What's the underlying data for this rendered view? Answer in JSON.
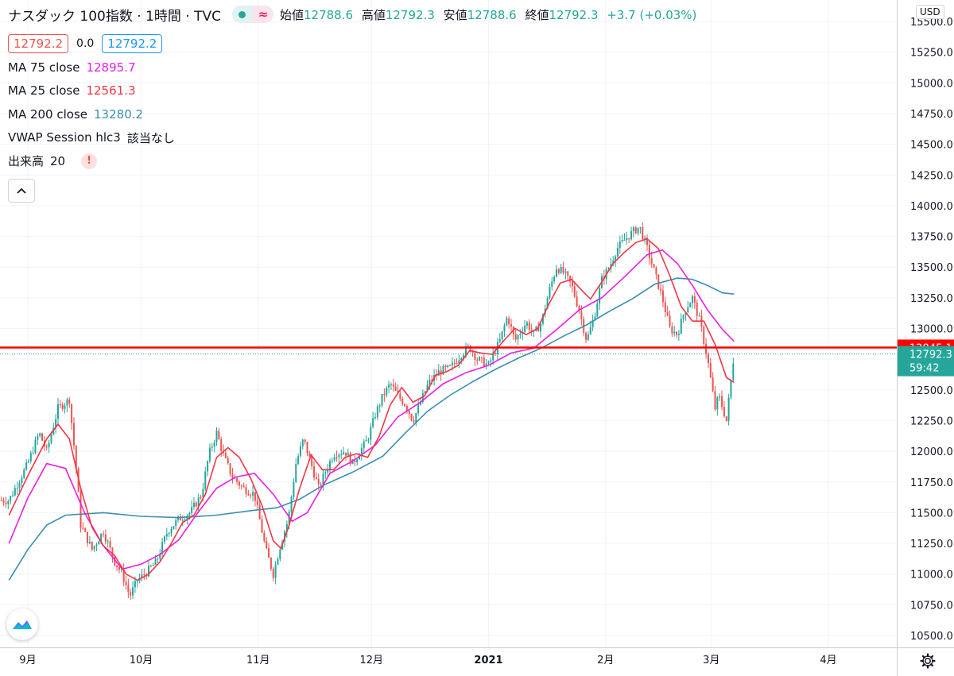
{
  "header": {
    "symbol": "ナスダック 100指数 · 1時間 · TVC",
    "ohlc": [
      {
        "label": "始値",
        "value": "12788.6"
      },
      {
        "label": "高値",
        "value": "12792.3"
      },
      {
        "label": "安値",
        "value": "12788.6"
      },
      {
        "label": "終値",
        "value": "12792.3"
      }
    ],
    "change": "+3.7 (+0.03%)"
  },
  "price_row": {
    "bid": "12792.2",
    "spread": "0.0",
    "ask": "12792.2"
  },
  "indicators": [
    {
      "label": "MA 75 close",
      "value": "12895.7",
      "color": "#e91ee1"
    },
    {
      "label": "MA 25 close",
      "value": "12561.3",
      "color": "#f23645"
    },
    {
      "label": "MA 200 close",
      "value": "13280.2",
      "color": "#3a8fb0"
    },
    {
      "label": "VWAP Session hlc3",
      "value": "該当なし",
      "color": "#131722"
    },
    {
      "label": "出来高",
      "value": "20",
      "color": "#131722"
    }
  ],
  "currency": "USD",
  "colors": {
    "up": "#26a69a",
    "down": "#ef5350",
    "ma75": "#e91ee1",
    "ma25": "#f23645",
    "ma200": "#3a8fb0",
    "hline": "#ff0000",
    "last_price_bg": "#26a69a"
  },
  "icons": {
    "collapse": "chevron-up-icon",
    "logo": "tradingview-logo-icon",
    "settings": "gear-icon"
  },
  "chart_data": {
    "type": "candlestick",
    "x_ticks": [
      "9月",
      "10月",
      "11月",
      "12月",
      "2021",
      "2月",
      "3月",
      "4月"
    ],
    "y_ticks": [
      10500,
      10750,
      11000,
      11250,
      11500,
      11750,
      12000,
      12250,
      12500,
      12750,
      13000,
      13250,
      13500,
      13750,
      14000,
      14250,
      14500,
      14750,
      15000,
      15250,
      15500
    ],
    "y_range": [
      10390,
      15600
    ],
    "horizontal_line": {
      "value": 12845.1,
      "label": "12845.1"
    },
    "last_price": {
      "value": 12792.3,
      "label": "12792.3",
      "countdown": "59:42"
    },
    "close_anchors": [
      {
        "d": -5,
        "v": 11600
      },
      {
        "d": 0,
        "v": 11900
      },
      {
        "d": 3,
        "v": 12150
      },
      {
        "d": 5,
        "v": 12000
      },
      {
        "d": 8,
        "v": 12350
      },
      {
        "d": 11,
        "v": 12420
      },
      {
        "d": 13,
        "v": 11800
      },
      {
        "d": 14,
        "v": 11400
      },
      {
        "d": 17,
        "v": 11200
      },
      {
        "d": 20,
        "v": 11350
      },
      {
        "d": 23,
        "v": 11100
      },
      {
        "d": 25,
        "v": 11000
      },
      {
        "d": 27,
        "v": 10820
      },
      {
        "d": 29,
        "v": 10950
      },
      {
        "d": 31,
        "v": 11000
      },
      {
        "d": 34,
        "v": 11100
      },
      {
        "d": 37,
        "v": 11350
      },
      {
        "d": 40,
        "v": 11450
      },
      {
        "d": 43,
        "v": 11500
      },
      {
        "d": 46,
        "v": 11650
      },
      {
        "d": 48,
        "v": 11980
      },
      {
        "d": 50,
        "v": 12150
      },
      {
        "d": 52,
        "v": 11950
      },
      {
        "d": 54,
        "v": 11800
      },
      {
        "d": 57,
        "v": 11700
      },
      {
        "d": 60,
        "v": 11650
      },
      {
        "d": 63,
        "v": 11200
      },
      {
        "d": 65,
        "v": 11000
      },
      {
        "d": 67,
        "v": 11250
      },
      {
        "d": 69,
        "v": 11450
      },
      {
        "d": 71,
        "v": 11900
      },
      {
        "d": 73,
        "v": 12100
      },
      {
        "d": 75,
        "v": 11900
      },
      {
        "d": 77,
        "v": 11700
      },
      {
        "d": 79,
        "v": 11850
      },
      {
        "d": 81,
        "v": 11980
      },
      {
        "d": 84,
        "v": 12000
      },
      {
        "d": 86,
        "v": 11900
      },
      {
        "d": 88,
        "v": 12000
      },
      {
        "d": 90,
        "v": 12100
      },
      {
        "d": 92,
        "v": 12300
      },
      {
        "d": 94,
        "v": 12450
      },
      {
        "d": 96,
        "v": 12550
      },
      {
        "d": 98,
        "v": 12450
      },
      {
        "d": 100,
        "v": 12380
      },
      {
        "d": 102,
        "v": 12250
      },
      {
        "d": 104,
        "v": 12400
      },
      {
        "d": 106,
        "v": 12550
      },
      {
        "d": 109,
        "v": 12650
      },
      {
        "d": 112,
        "v": 12680
      },
      {
        "d": 115,
        "v": 12800
      },
      {
        "d": 117,
        "v": 12850
      },
      {
        "d": 119,
        "v": 12750
      },
      {
        "d": 122,
        "v": 12700
      },
      {
        "d": 125,
        "v": 12900
      },
      {
        "d": 127,
        "v": 13100
      },
      {
        "d": 129,
        "v": 12900
      },
      {
        "d": 132,
        "v": 13050
      },
      {
        "d": 134,
        "v": 12950
      },
      {
        "d": 136,
        "v": 13050
      },
      {
        "d": 138,
        "v": 13300
      },
      {
        "d": 140,
        "v": 13500
      },
      {
        "d": 142,
        "v": 13450
      },
      {
        "d": 144,
        "v": 13350
      },
      {
        "d": 146,
        "v": 13150
      },
      {
        "d": 148,
        "v": 12900
      },
      {
        "d": 150,
        "v": 13100
      },
      {
        "d": 152,
        "v": 13400
      },
      {
        "d": 154,
        "v": 13500
      },
      {
        "d": 156,
        "v": 13650
      },
      {
        "d": 158,
        "v": 13720
      },
      {
        "d": 160,
        "v": 13780
      },
      {
        "d": 162,
        "v": 13830
      },
      {
        "d": 164,
        "v": 13650
      },
      {
        "d": 166,
        "v": 13450
      },
      {
        "d": 168,
        "v": 13250
      },
      {
        "d": 170,
        "v": 13000
      },
      {
        "d": 172,
        "v": 12950
      },
      {
        "d": 174,
        "v": 13150
      },
      {
        "d": 176,
        "v": 13250
      },
      {
        "d": 178,
        "v": 13050
      },
      {
        "d": 180,
        "v": 12750
      },
      {
        "d": 182,
        "v": 12350
      },
      {
        "d": 183,
        "v": 12450
      },
      {
        "d": 185,
        "v": 12250
      },
      {
        "d": 187,
        "v": 12792
      }
    ],
    "ma75_points": [
      {
        "d": -5,
        "v": 11250
      },
      {
        "d": 0,
        "v": 11620
      },
      {
        "d": 5,
        "v": 11900
      },
      {
        "d": 10,
        "v": 11860
      },
      {
        "d": 15,
        "v": 11500
      },
      {
        "d": 20,
        "v": 11230
      },
      {
        "d": 25,
        "v": 11040
      },
      {
        "d": 30,
        "v": 11080
      },
      {
        "d": 35,
        "v": 11160
      },
      {
        "d": 40,
        "v": 11280
      },
      {
        "d": 45,
        "v": 11500
      },
      {
        "d": 50,
        "v": 11700
      },
      {
        "d": 55,
        "v": 11790
      },
      {
        "d": 60,
        "v": 11820
      },
      {
        "d": 65,
        "v": 11650
      },
      {
        "d": 70,
        "v": 11430
      },
      {
        "d": 74,
        "v": 11500
      },
      {
        "d": 80,
        "v": 11820
      },
      {
        "d": 86,
        "v": 11920
      },
      {
        "d": 92,
        "v": 12050
      },
      {
        "d": 98,
        "v": 12280
      },
      {
        "d": 104,
        "v": 12400
      },
      {
        "d": 110,
        "v": 12550
      },
      {
        "d": 116,
        "v": 12640
      },
      {
        "d": 122,
        "v": 12700
      },
      {
        "d": 128,
        "v": 12800
      },
      {
        "d": 134,
        "v": 12840
      },
      {
        "d": 140,
        "v": 12990
      },
      {
        "d": 146,
        "v": 13150
      },
      {
        "d": 152,
        "v": 13250
      },
      {
        "d": 158,
        "v": 13420
      },
      {
        "d": 164,
        "v": 13600
      },
      {
        "d": 168,
        "v": 13640
      },
      {
        "d": 172,
        "v": 13530
      },
      {
        "d": 176,
        "v": 13350
      },
      {
        "d": 180,
        "v": 13150
      },
      {
        "d": 184,
        "v": 12990
      },
      {
        "d": 187,
        "v": 12896
      }
    ],
    "ma25_points": [
      {
        "d": -5,
        "v": 11480
      },
      {
        "d": 0,
        "v": 11800
      },
      {
        "d": 5,
        "v": 12100
      },
      {
        "d": 8,
        "v": 12220
      },
      {
        "d": 11,
        "v": 12100
      },
      {
        "d": 14,
        "v": 11700
      },
      {
        "d": 17,
        "v": 11380
      },
      {
        "d": 20,
        "v": 11230
      },
      {
        "d": 23,
        "v": 11150
      },
      {
        "d": 26,
        "v": 11000
      },
      {
        "d": 29,
        "v": 10950
      },
      {
        "d": 32,
        "v": 11000
      },
      {
        "d": 35,
        "v": 11100
      },
      {
        "d": 38,
        "v": 11250
      },
      {
        "d": 41,
        "v": 11420
      },
      {
        "d": 44,
        "v": 11480
      },
      {
        "d": 47,
        "v": 11650
      },
      {
        "d": 50,
        "v": 11950
      },
      {
        "d": 53,
        "v": 12030
      },
      {
        "d": 56,
        "v": 11950
      },
      {
        "d": 59,
        "v": 11780
      },
      {
        "d": 62,
        "v": 11560
      },
      {
        "d": 65,
        "v": 11270
      },
      {
        "d": 67,
        "v": 11210
      },
      {
        "d": 69,
        "v": 11380
      },
      {
        "d": 72,
        "v": 11700
      },
      {
        "d": 75,
        "v": 11970
      },
      {
        "d": 78,
        "v": 11850
      },
      {
        "d": 81,
        "v": 11850
      },
      {
        "d": 84,
        "v": 11950
      },
      {
        "d": 87,
        "v": 11980
      },
      {
        "d": 90,
        "v": 11950
      },
      {
        "d": 93,
        "v": 12120
      },
      {
        "d": 96,
        "v": 12380
      },
      {
        "d": 99,
        "v": 12520
      },
      {
        "d": 102,
        "v": 12400
      },
      {
        "d": 105,
        "v": 12450
      },
      {
        "d": 108,
        "v": 12620
      },
      {
        "d": 111,
        "v": 12650
      },
      {
        "d": 114,
        "v": 12700
      },
      {
        "d": 117,
        "v": 12820
      },
      {
        "d": 120,
        "v": 12800
      },
      {
        "d": 123,
        "v": 12790
      },
      {
        "d": 126,
        "v": 12900
      },
      {
        "d": 129,
        "v": 13000
      },
      {
        "d": 132,
        "v": 12950
      },
      {
        "d": 135,
        "v": 13000
      },
      {
        "d": 138,
        "v": 13200
      },
      {
        "d": 141,
        "v": 13370
      },
      {
        "d": 144,
        "v": 13400
      },
      {
        "d": 147,
        "v": 13300
      },
      {
        "d": 149,
        "v": 13240
      },
      {
        "d": 152,
        "v": 13380
      },
      {
        "d": 155,
        "v": 13530
      },
      {
        "d": 158,
        "v": 13620
      },
      {
        "d": 161,
        "v": 13700
      },
      {
        "d": 164,
        "v": 13730
      },
      {
        "d": 167,
        "v": 13650
      },
      {
        "d": 170,
        "v": 13430
      },
      {
        "d": 173,
        "v": 13180
      },
      {
        "d": 176,
        "v": 13060
      },
      {
        "d": 179,
        "v": 13060
      },
      {
        "d": 182,
        "v": 12870
      },
      {
        "d": 185,
        "v": 12600
      },
      {
        "d": 187,
        "v": 12561
      }
    ],
    "ma200_points": [
      {
        "d": -5,
        "v": 10950
      },
      {
        "d": 0,
        "v": 11200
      },
      {
        "d": 5,
        "v": 11400
      },
      {
        "d": 10,
        "v": 11480
      },
      {
        "d": 20,
        "v": 11500
      },
      {
        "d": 30,
        "v": 11470
      },
      {
        "d": 40,
        "v": 11460
      },
      {
        "d": 50,
        "v": 11480
      },
      {
        "d": 60,
        "v": 11520
      },
      {
        "d": 66,
        "v": 11540
      },
      {
        "d": 72,
        "v": 11610
      },
      {
        "d": 78,
        "v": 11720
      },
      {
        "d": 86,
        "v": 11830
      },
      {
        "d": 94,
        "v": 11960
      },
      {
        "d": 100,
        "v": 12150
      },
      {
        "d": 106,
        "v": 12330
      },
      {
        "d": 112,
        "v": 12460
      },
      {
        "d": 118,
        "v": 12570
      },
      {
        "d": 124,
        "v": 12670
      },
      {
        "d": 130,
        "v": 12760
      },
      {
        "d": 136,
        "v": 12840
      },
      {
        "d": 142,
        "v": 12940
      },
      {
        "d": 148,
        "v": 13030
      },
      {
        "d": 154,
        "v": 13140
      },
      {
        "d": 160,
        "v": 13240
      },
      {
        "d": 166,
        "v": 13360
      },
      {
        "d": 172,
        "v": 13410
      },
      {
        "d": 176,
        "v": 13400
      },
      {
        "d": 180,
        "v": 13350
      },
      {
        "d": 184,
        "v": 13290
      },
      {
        "d": 187,
        "v": 13280
      }
    ]
  }
}
